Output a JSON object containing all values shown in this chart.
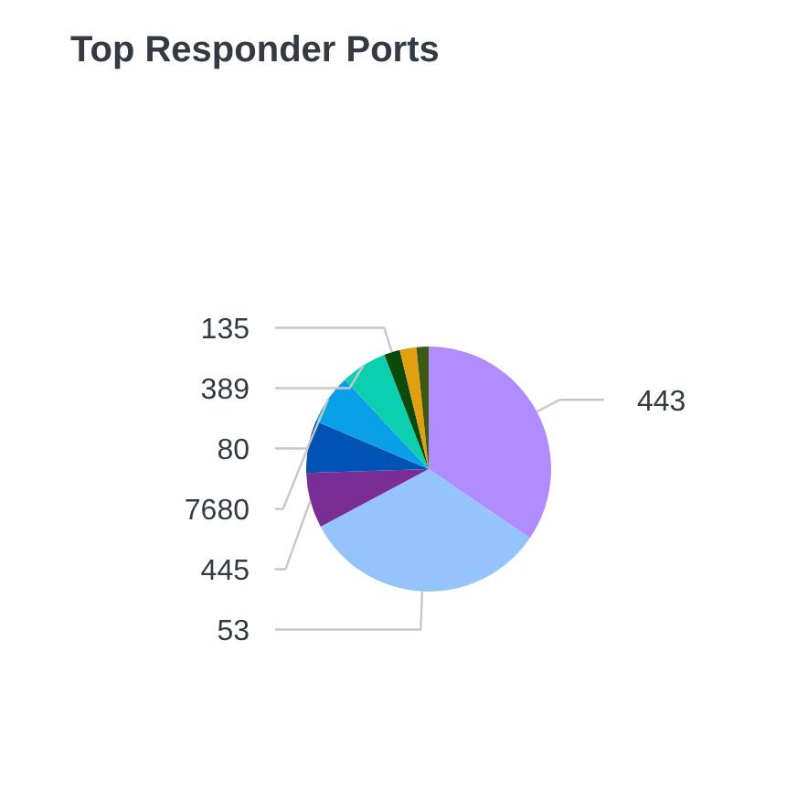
{
  "chart_data": {
    "type": "pie",
    "title": "Top Responder Ports",
    "categories": [
      "443",
      "53",
      "445",
      "7680",
      "80",
      "389",
      "135",
      null,
      null
    ],
    "values": [
      34.5,
      32.7,
      7.3,
      6.9,
      6.6,
      6.1,
      2.1,
      2.2,
      1.6
    ],
    "colors": [
      "#b18cfe",
      "#94c4fb",
      "#7b2d96",
      "#0052b4",
      "#0aa0e8",
      "#0ccfb0",
      "#0c4a0c",
      "#e0a010",
      "#3c5a10"
    ]
  }
}
